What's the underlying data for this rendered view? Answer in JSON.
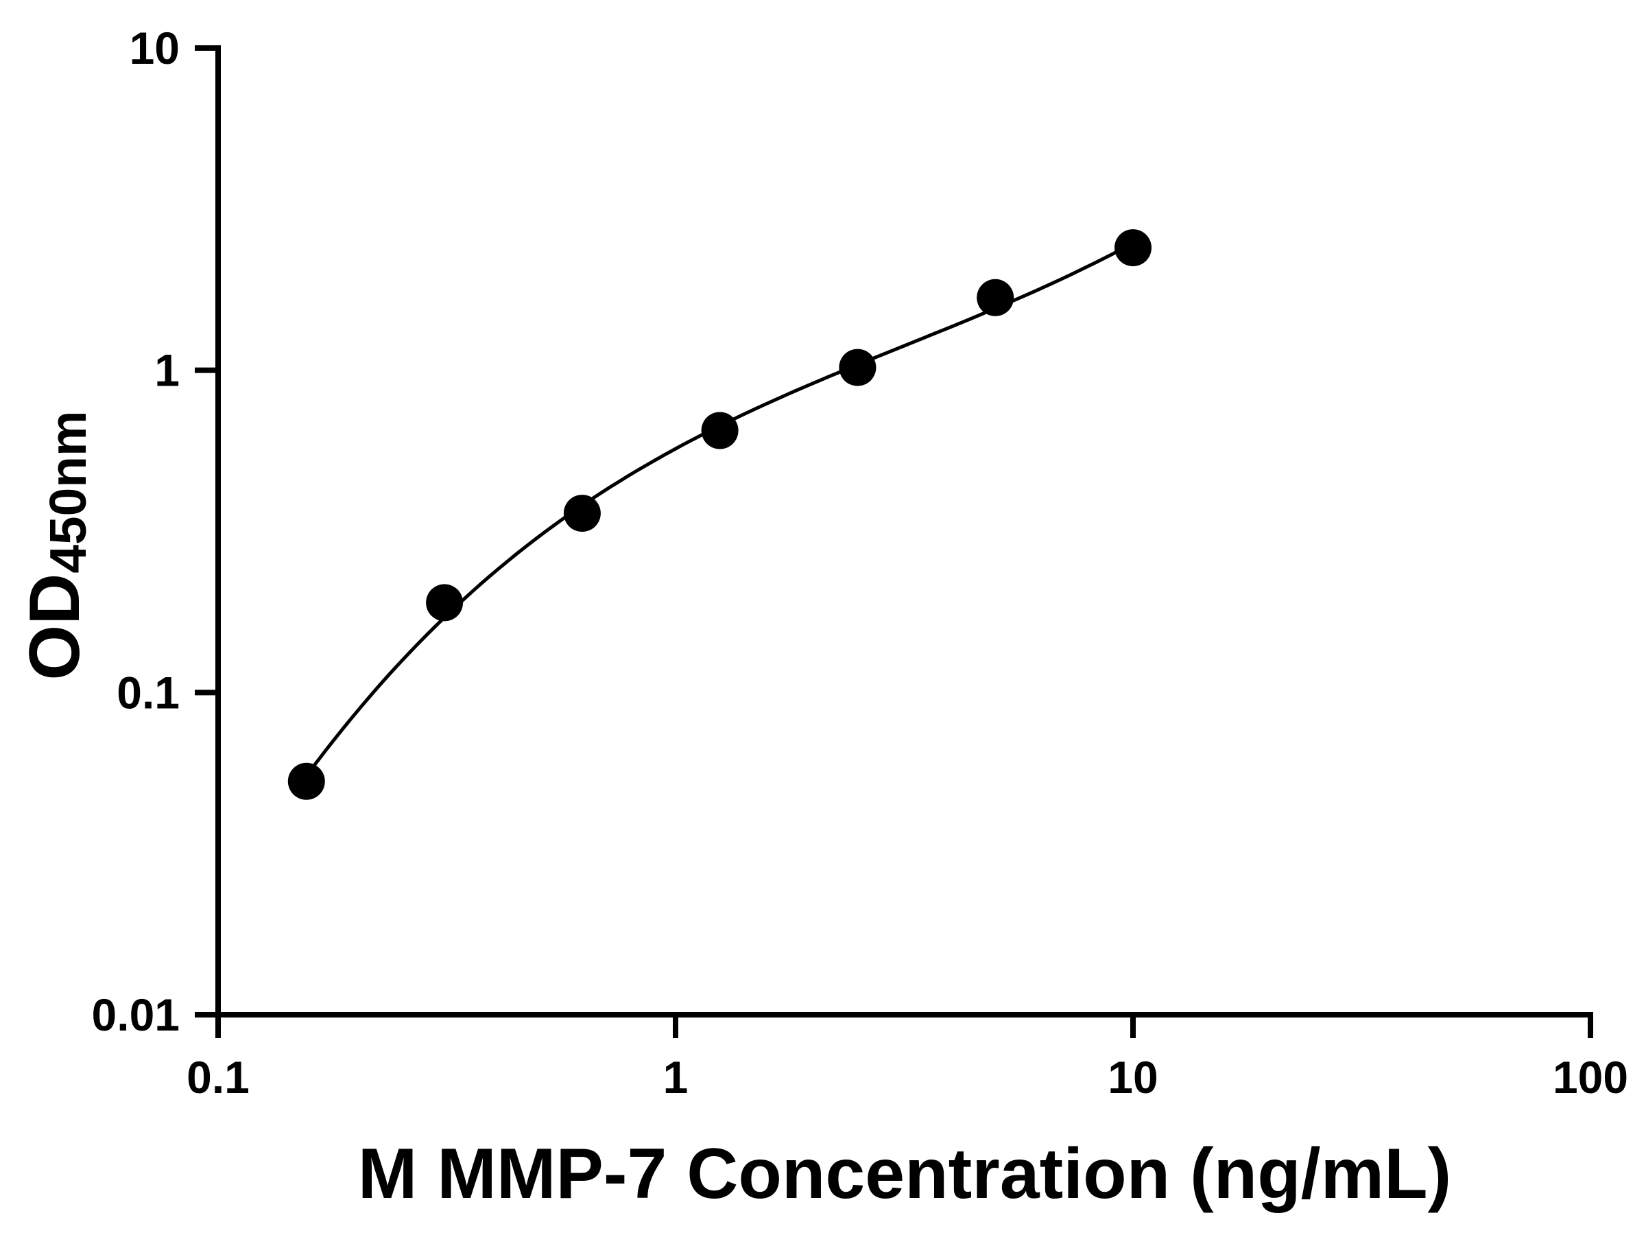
{
  "chart_data": {
    "type": "scatter",
    "title": "",
    "xlabel": "M MMP-7 Concentration (ng/mL)",
    "ylabel_main": "OD",
    "ylabel_sub": "450nm",
    "x_scale": "log",
    "y_scale": "log",
    "xlim": [
      0.1,
      100
    ],
    "ylim": [
      0.01,
      10
    ],
    "x_ticks": [
      "0.1",
      "1",
      "10",
      "100"
    ],
    "y_ticks": [
      "10",
      "1",
      "0.1",
      "0.01"
    ],
    "grid": false,
    "legend": "none",
    "background": "#ffffff",
    "axis_color": "#000000",
    "marker_color": "#000000",
    "line_color": "#000000",
    "curve_fit": true,
    "series": [
      {
        "x": [
          0.156,
          0.3125,
          0.625,
          1.25,
          2.5,
          5,
          10
        ],
        "y": [
          0.053,
          0.19,
          0.36,
          0.65,
          1.02,
          1.68,
          2.4
        ]
      }
    ]
  }
}
